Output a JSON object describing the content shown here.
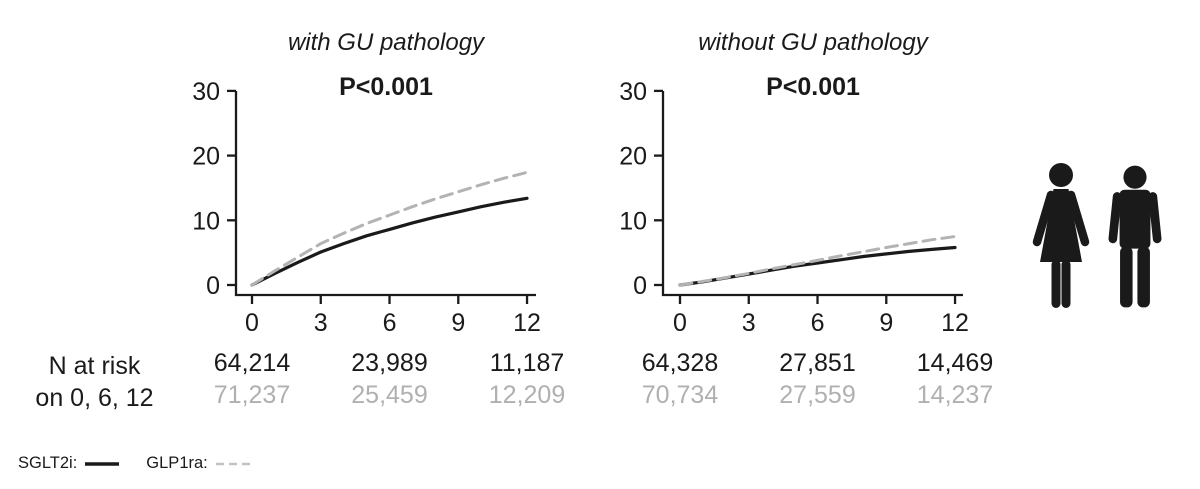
{
  "colors": {
    "black": "#1a1a1a",
    "gray_line": "#b3b3b3",
    "gray_text": "#b0b0b0",
    "background": "#ffffff"
  },
  "legend": {
    "items": [
      {
        "label": "SGLT2i:",
        "line_style": "solid",
        "color": "#1a1a1a"
      },
      {
        "label": "GLP1ra:",
        "line_style": "dashed",
        "color": "#c3c3c3"
      }
    ]
  },
  "risk_header": {
    "line1": "N at risk",
    "line2": "on 0, 6, 12"
  },
  "icons": [
    {
      "name": "female-pictogram",
      "color": "#1a1a1a"
    },
    {
      "name": "male-pictogram",
      "color": "#1a1a1a"
    }
  ],
  "chart_data": [
    {
      "type": "line",
      "title": "with GU pathology",
      "annotation": "P<0.001",
      "xlabel": "",
      "ylabel": "",
      "xlim": [
        0,
        12
      ],
      "ylim": [
        0,
        30
      ],
      "xticks": [
        0,
        3,
        6,
        9,
        12
      ],
      "yticks": [
        0,
        10,
        20,
        30
      ],
      "grid": false,
      "legend_position": "bottom-left",
      "x": [
        0,
        1,
        2,
        3,
        4,
        5,
        6,
        7,
        8,
        9,
        10,
        11,
        12
      ],
      "series": [
        {
          "name": "SGLT2i",
          "style": "solid",
          "color": "#1a1a1a",
          "values": [
            0,
            1.8,
            3.5,
            5.1,
            6.4,
            7.6,
            8.6,
            9.6,
            10.5,
            11.3,
            12.1,
            12.8,
            13.4
          ]
        },
        {
          "name": "GLP1ra",
          "style": "dashed",
          "color": "#b3b3b3",
          "values": [
            0,
            2.2,
            4.3,
            6.4,
            8.0,
            9.5,
            10.8,
            12.1,
            13.3,
            14.4,
            15.5,
            16.5,
            17.4
          ]
        }
      ],
      "n_at_risk": {
        "times": [
          0,
          6,
          12
        ],
        "rows": [
          {
            "name": "SGLT2i",
            "color": "#1a1a1a",
            "values": [
              "64,214",
              "23,989",
              "11,187"
            ]
          },
          {
            "name": "GLP1ra",
            "color": "#b0b0b0",
            "values": [
              "71,237",
              "25,459",
              "12,209"
            ]
          }
        ]
      }
    },
    {
      "type": "line",
      "title": "without GU pathology",
      "annotation": "P<0.001",
      "xlabel": "",
      "ylabel": "",
      "xlim": [
        0,
        12
      ],
      "ylim": [
        0,
        30
      ],
      "xticks": [
        0,
        3,
        6,
        9,
        12
      ],
      "yticks": [
        0,
        10,
        20,
        30
      ],
      "grid": false,
      "x": [
        0,
        1,
        2,
        3,
        4,
        5,
        6,
        7,
        8,
        9,
        10,
        11,
        12
      ],
      "series": [
        {
          "name": "SGLT2i",
          "style": "solid",
          "color": "#1a1a1a",
          "values": [
            0,
            0.5,
            1.1,
            1.7,
            2.3,
            2.9,
            3.4,
            3.9,
            4.4,
            4.8,
            5.2,
            5.5,
            5.8
          ]
        },
        {
          "name": "GLP1ra",
          "style": "dashed",
          "color": "#b3b3b3",
          "values": [
            0,
            0.55,
            1.15,
            1.8,
            2.5,
            3.15,
            3.8,
            4.5,
            5.15,
            5.8,
            6.4,
            7.0,
            7.5
          ]
        }
      ],
      "n_at_risk": {
        "times": [
          0,
          6,
          12
        ],
        "rows": [
          {
            "name": "SGLT2i",
            "color": "#1a1a1a",
            "values": [
              "64,328",
              "27,851",
              "14,469"
            ]
          },
          {
            "name": "GLP1ra",
            "color": "#b0b0b0",
            "values": [
              "70,734",
              "27,559",
              "14,237"
            ]
          }
        ]
      }
    }
  ]
}
